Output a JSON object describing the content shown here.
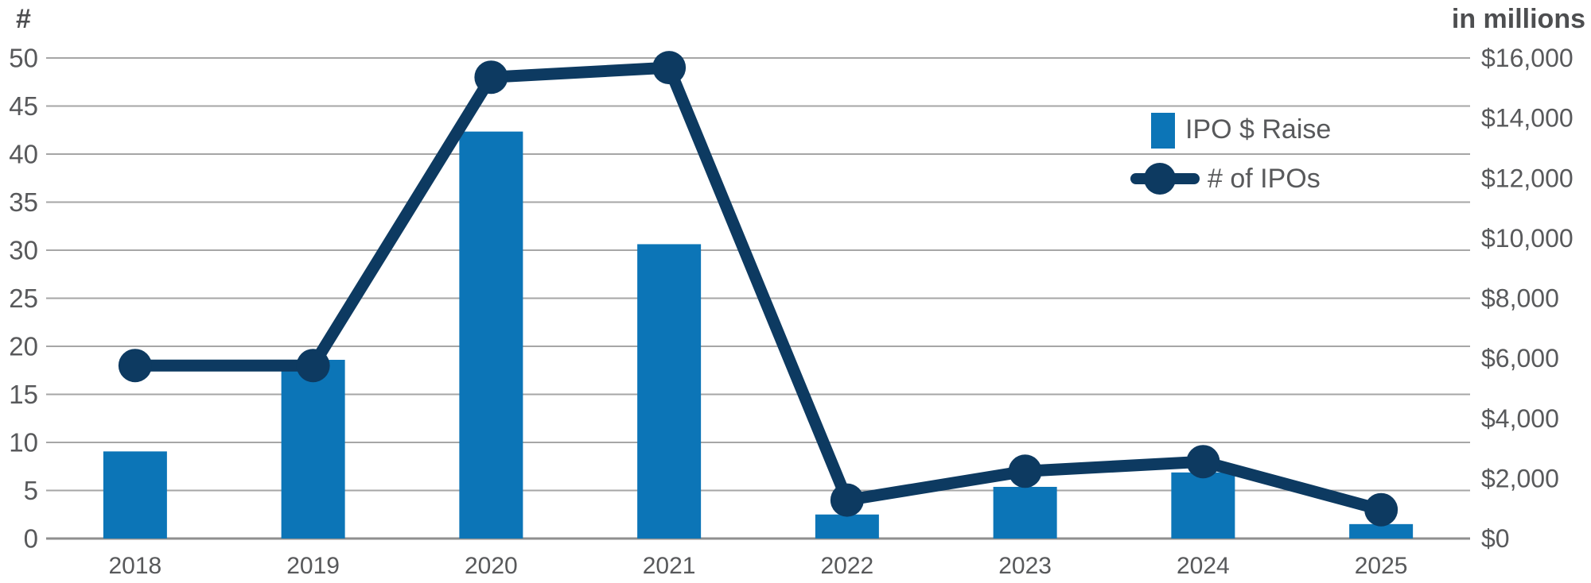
{
  "chart_data": {
    "type": "combo-bar-line",
    "categories": [
      "2018",
      "2019",
      "2020",
      "2021",
      "2022",
      "2023",
      "2024",
      "2025"
    ],
    "series": [
      {
        "name": "IPO $ Raise",
        "type": "bar",
        "axis": "right",
        "color": "#0C75B7",
        "values": [
          2900,
          5950,
          13550,
          9800,
          800,
          1720,
          2200,
          480
        ]
      },
      {
        "name": "# of IPOs",
        "type": "line",
        "axis": "left",
        "color": "#0D3A61",
        "values": [
          18,
          18,
          48,
          49,
          4,
          7,
          8,
          3
        ]
      }
    ],
    "left_axis": {
      "label": "#",
      "min": 0,
      "max": 50,
      "tick_step": 5,
      "tick_labels": [
        "0",
        "5",
        "10",
        "15",
        "20",
        "25",
        "30",
        "35",
        "40",
        "45",
        "50"
      ]
    },
    "right_axis": {
      "label": "in millions",
      "min": 0,
      "max": 16000,
      "tick_step": 2000,
      "tick_labels": [
        "$0",
        "$2,000",
        "$4,000",
        "$6,000",
        "$8,000",
        "$10,000",
        "$12,000",
        "$14,000",
        "$16,000"
      ]
    },
    "grid": true,
    "legend_position": "top-right",
    "text_color": "#58595B",
    "grid_color": "#A6A6A6",
    "baseline_color": "#8F8F8F",
    "background_color": "#FFFFFF"
  }
}
